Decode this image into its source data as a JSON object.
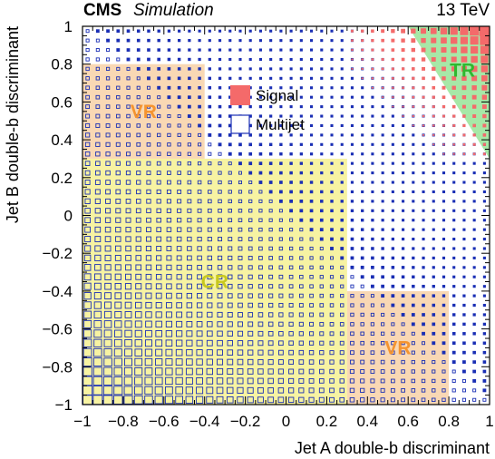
{
  "header": {
    "experiment": "CMS",
    "status": "Simulation",
    "energy": "13 TeV"
  },
  "chart_data": {
    "type": "heatmap",
    "xlabel": "Jet A double-b discriminant",
    "ylabel": "Jet B double-b discriminant",
    "xlim": [
      -1,
      1
    ],
    "ylim": [
      -1,
      1
    ],
    "xticks": [
      "−1",
      "−0.8",
      "−0.6",
      "−0.4",
      "−0.2",
      "0",
      "0.2",
      "0.4",
      "0.6",
      "0.8",
      "1"
    ],
    "yticks": [
      "−1",
      "−0.8",
      "−0.6",
      "−0.4",
      "−0.2",
      "0",
      "0.2",
      "0.4",
      "0.6",
      "0.8",
      "1"
    ],
    "bins": {
      "x_min": -0.975,
      "x_max": 0.975,
      "y_min": -0.975,
      "y_max": 0.975,
      "step": 0.05
    },
    "legend": {
      "position": "top-center",
      "entries": [
        {
          "name": "Signal",
          "style": "filled",
          "color": "#f46a6a"
        },
        {
          "name": "Multijet",
          "style": "open",
          "color": "#1a2fb5"
        }
      ]
    },
    "regions": [
      {
        "label": "CR",
        "x": [
          -1,
          0.3
        ],
        "y": [
          -1,
          0.3
        ],
        "color": "#f7f3a2",
        "label_color": "#c8c81e"
      },
      {
        "label": "VR",
        "x": [
          -1,
          -0.4
        ],
        "y": [
          0.3,
          0.8
        ],
        "color": "#f9d8b4",
        "label_color": "#f5942f"
      },
      {
        "label": "VR",
        "x": [
          0.3,
          0.8
        ],
        "y": [
          -1,
          -0.4
        ],
        "color": "#f9d8b4",
        "label_color": "#f5942f"
      },
      {
        "label": "TR",
        "vertices": [
          [
            0.6,
            1
          ],
          [
            1,
            1
          ],
          [
            1,
            0.3
          ]
        ],
        "color": "#a7e8a7",
        "label_color": "#2fb82f"
      }
    ]
  }
}
